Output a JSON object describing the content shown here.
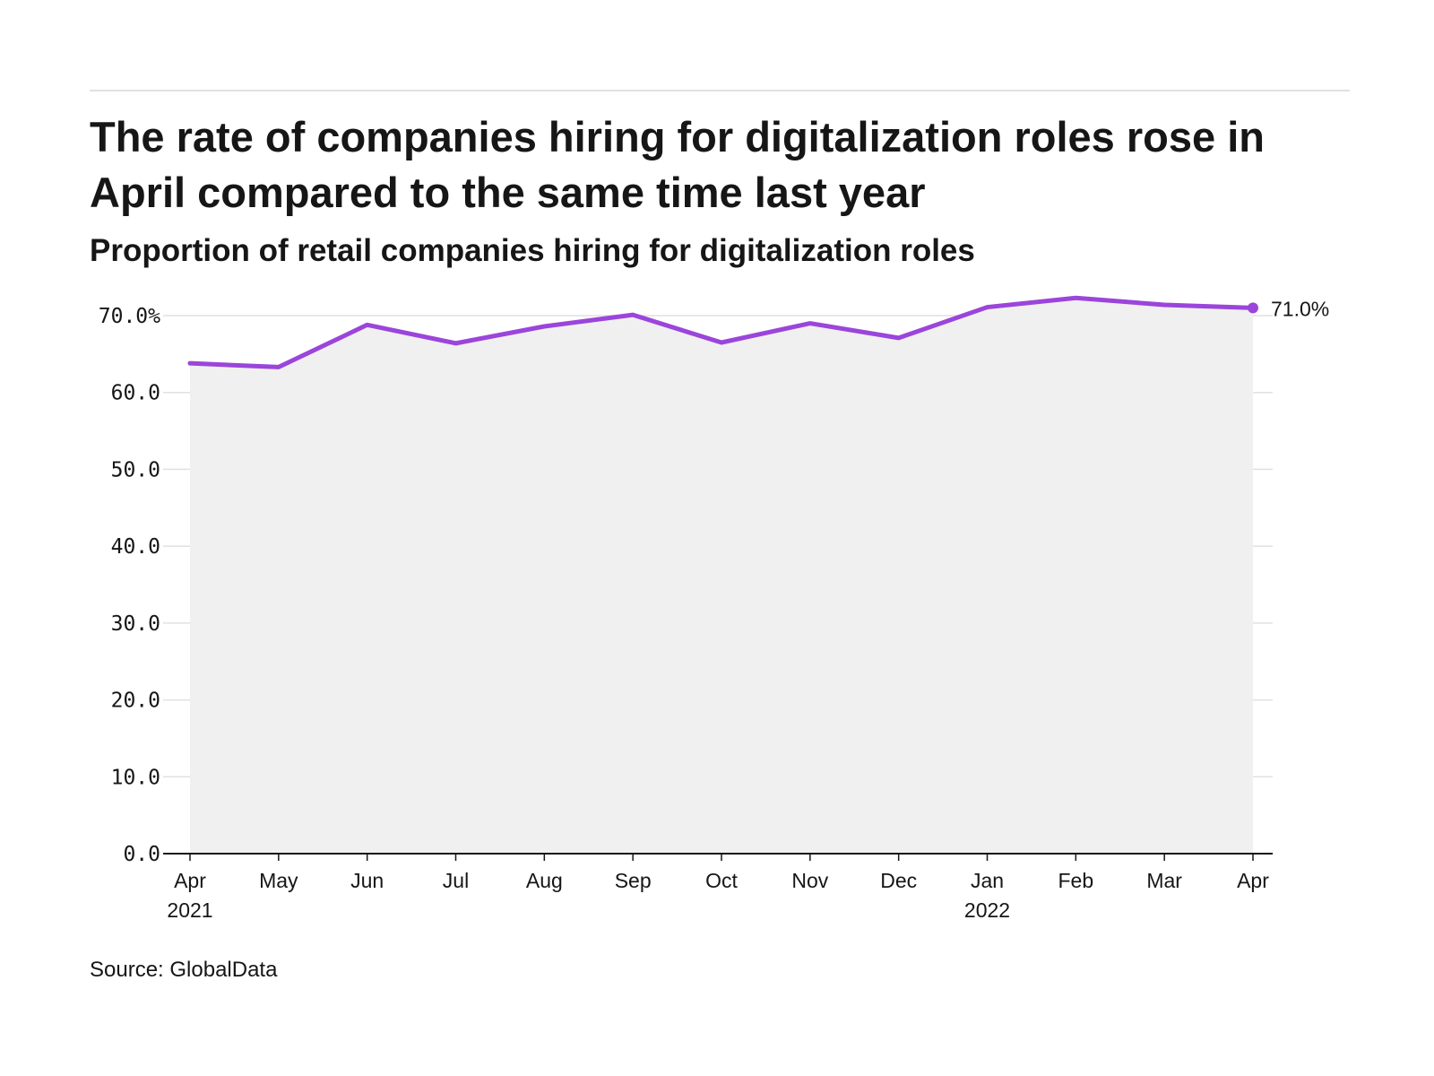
{
  "header": {
    "title": "The rate of companies hiring for digitalization roles rose in April compared to the same time last year",
    "subtitle": "Proportion of retail companies hiring for digitalization roles"
  },
  "footer": {
    "source": "Source: GlobalData"
  },
  "colors": {
    "line": "#9b45db",
    "area": "#f0f0f0",
    "grid": "#e0e0e0",
    "axis": "#161616"
  },
  "chart_data": {
    "type": "area",
    "title": "The rate of companies hiring for digitalization roles rose in April compared to the same time last year",
    "subtitle": "Proportion of retail companies hiring for digitalization roles",
    "xlabel": "",
    "ylabel": "",
    "categories": [
      "Apr",
      "May",
      "Jun",
      "Jul",
      "Aug",
      "Sep",
      "Oct",
      "Nov",
      "Dec",
      "Jan",
      "Feb",
      "Mar",
      "Apr"
    ],
    "category_years": [
      "2021",
      "",
      "",
      "",
      "",
      "",
      "",
      "",
      "",
      "2022",
      "",
      "",
      ""
    ],
    "series": [
      {
        "values": [
          63.8,
          63.3,
          68.8,
          66.4,
          68.6,
          70.1,
          66.5,
          69.0,
          67.1,
          71.1,
          72.3,
          71.4,
          71.0
        ]
      }
    ],
    "ylim": [
      0,
      70
    ],
    "y_ticks": [
      0,
      10,
      20,
      30,
      40,
      50,
      60,
      70
    ],
    "y_tick_labels": [
      "0.0",
      "10.0",
      "20.0",
      "30.0",
      "40.0",
      "50.0",
      "60.0",
      "70.0%"
    ],
    "end_label": "71.0%",
    "grid": true,
    "legend": "none"
  }
}
